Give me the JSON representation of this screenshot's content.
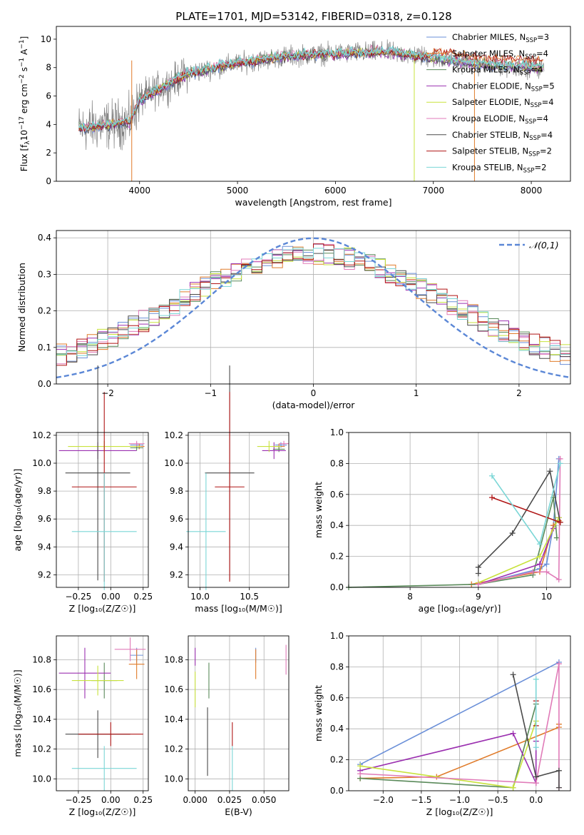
{
  "title": "PLATE=1701, MJD=53142, FIBERID=0318, z=0.128",
  "colors": {
    "chabrier_miles": "#6a8fd8",
    "salpeter_miles": "#e07b2a",
    "kroupa_miles": "#5a8a5a",
    "chabrier_elodie": "#9b30b0",
    "salpeter_elodie": "#c8e23c",
    "kroupa_elodie": "#e07bb8",
    "chabrier_stelib": "#4a4a4a",
    "salpeter_stelib": "#b01515",
    "kroupa_stelib": "#7ad6d6",
    "data": "#808080",
    "normal": "#5b87d6"
  },
  "chart_data": [
    {
      "id": "spectrum",
      "type": "line",
      "xlabel": "wavelength [Angstrom, rest frame]",
      "ylabel": "Flux [f",
      "ylabel_full": "Flux [fλ10^-17 erg cm^-2 s^-1 A^-1]",
      "xlim": [
        3150,
        8400
      ],
      "ylim": [
        0,
        10.9
      ],
      "xticks": [
        4000,
        5000,
        6000,
        7000,
        8000
      ],
      "yticks": [
        0,
        2,
        4,
        6,
        8,
        10
      ],
      "legend": [
        {
          "base": "Chabrier MILES, N",
          "sub": "SSP",
          "tail": "=3"
        },
        {
          "base": "Salpeter MILES, N",
          "sub": "SSP",
          "tail": "=4"
        },
        {
          "base": "Kroupa MILES, N",
          "sub": "SSP",
          "tail": "=4"
        },
        {
          "base": "Chabrier ELODIE, N",
          "sub": "SSP",
          "tail": "=5"
        },
        {
          "base": "Salpeter ELODIE, N",
          "sub": "SSP",
          "tail": "=4"
        },
        {
          "base": "Kroupa ELODIE, N",
          "sub": "SSP",
          "tail": "=4"
        },
        {
          "base": "Chabrier STELIB, N",
          "sub": "SSP",
          "tail": "=4"
        },
        {
          "base": "Salpeter STELIB, N",
          "sub": "SSP",
          "tail": "=2"
        },
        {
          "base": "Kroupa STELIB, N",
          "sub": "SSP",
          "tail": "=2"
        }
      ],
      "continuum": {
        "x": [
          3380,
          3600,
          3900,
          4000,
          4200,
          4500,
          5000,
          5500,
          6000,
          6500,
          7000,
          7500,
          8100
        ],
        "y": [
          3.7,
          3.9,
          4.2,
          5.7,
          6.5,
          7.6,
          8.3,
          8.8,
          9.0,
          9.1,
          8.7,
          8.2,
          8.0
        ]
      }
    },
    {
      "id": "residuals",
      "type": "step",
      "xlabel": "(data-model)/error",
      "ylabel": "Normed distribution",
      "xlim": [
        -2.5,
        2.5
      ],
      "ylim": [
        0,
        0.42
      ],
      "xticks": [
        -2,
        -1,
        0,
        1,
        2
      ],
      "yticks": [
        0.0,
        0.1,
        0.2,
        0.3,
        0.4
      ],
      "legend": "N(0,1)",
      "normal_label": "𝒩(0,1)"
    },
    {
      "id": "age_vs_Z",
      "type": "errorbar",
      "xlabel": "Z [log₁₀(Z/Z☉)]",
      "ylabel": "age  [log₁₀(age/yr)]",
      "xlim": [
        -0.42,
        0.29
      ],
      "ylim": [
        9.11,
        10.22
      ],
      "xticks": [
        -0.25,
        0.0,
        0.25
      ],
      "xticklabels": [
        "−0.25",
        "0.00",
        "0.25"
      ],
      "yticks": [
        9.2,
        9.4,
        9.6,
        9.8,
        10.0,
        10.2
      ],
      "points": [
        {
          "s": "chabrier_miles",
          "x": 0.2,
          "xe": 0.05,
          "y": 10.13,
          "ye": 0.02
        },
        {
          "s": "salpeter_miles",
          "x": 0.22,
          "xe": 0.04,
          "y": 10.12,
          "ye": 0.02
        },
        {
          "s": "kroupa_miles",
          "x": 0.2,
          "xe": 0.05,
          "y": 10.11,
          "ye": 0.02
        },
        {
          "s": "chabrier_elodie",
          "x": -0.1,
          "xe": 0.3,
          "y": 10.09,
          "ye": 0.06
        },
        {
          "s": "salpeter_elodie",
          "x": -0.05,
          "xe": 0.28,
          "y": 10.12,
          "ye": 0.04
        },
        {
          "s": "kroupa_elodie",
          "x": 0.2,
          "xe": 0.06,
          "y": 10.14,
          "ye": 0.02
        },
        {
          "s": "chabrier_stelib",
          "x": -0.1,
          "xe": 0.25,
          "y": 9.93,
          "ye": 0.77
        },
        {
          "s": "salpeter_stelib",
          "x": -0.05,
          "xe": 0.25,
          "y": 9.83,
          "ye": 0.68
        },
        {
          "s": "kroupa_stelib",
          "x": -0.05,
          "xe": 0.25,
          "y": 9.51,
          "ye": 0.42
        }
      ]
    },
    {
      "id": "age_vs_mass",
      "type": "errorbar",
      "xlabel": "mass [log₁₀(M/M☉)]",
      "ylabel": "",
      "xlim": [
        9.88,
        10.9
      ],
      "ylim": [
        9.11,
        10.22
      ],
      "xticks": [
        10.0,
        10.5
      ],
      "xticklabels": [
        "10.0",
        "10.5"
      ],
      "yticks": [
        9.2,
        9.4,
        9.6,
        9.8,
        10.0,
        10.2
      ],
      "points": [
        {
          "s": "chabrier_miles",
          "x": 10.82,
          "xe": 0.06,
          "y": 10.13,
          "ye": 0.02
        },
        {
          "s": "salpeter_miles",
          "x": 10.8,
          "xe": 0.06,
          "y": 10.12,
          "ye": 0.02
        },
        {
          "s": "kroupa_miles",
          "x": 10.8,
          "xe": 0.06,
          "y": 10.1,
          "ye": 0.02
        },
        {
          "s": "chabrier_elodie",
          "x": 10.75,
          "xe": 0.12,
          "y": 10.09,
          "ye": 0.06
        },
        {
          "s": "salpeter_elodie",
          "x": 10.7,
          "xe": 0.12,
          "y": 10.12,
          "ye": 0.04
        },
        {
          "s": "kroupa_elodie",
          "x": 10.85,
          "xe": 0.05,
          "y": 10.14,
          "ye": 0.02
        },
        {
          "s": "chabrier_stelib",
          "x": 10.3,
          "xe": 0.25,
          "y": 9.93,
          "ye": 0.77
        },
        {
          "s": "salpeter_stelib",
          "x": 10.3,
          "xe": 0.15,
          "y": 9.83,
          "ye": 0.68
        },
        {
          "s": "kroupa_stelib",
          "x": 10.06,
          "xe": 0.2,
          "y": 9.51,
          "ye": 0.42
        }
      ]
    },
    {
      "id": "weight_vs_age",
      "type": "line",
      "xlabel": "age  [log₁₀(age/yr)]",
      "ylabel": "mass weight",
      "xlim": [
        7.1,
        10.35
      ],
      "ylim": [
        0,
        1.0
      ],
      "xticks": [
        8,
        9,
        10
      ],
      "yticks": [
        0.0,
        0.2,
        0.4,
        0.6,
        0.8,
        1.0
      ],
      "series": [
        {
          "s": "chabrier_miles",
          "x": [
            9.0,
            9.9,
            10.0,
            10.1,
            10.18
          ],
          "y": [
            0.02,
            0.12,
            0.15,
            0.4,
            0.83
          ]
        },
        {
          "s": "salpeter_miles",
          "x": [
            8.9,
            9.9,
            10.1,
            10.18
          ],
          "y": [
            0.02,
            0.1,
            0.4,
            0.43
          ]
        },
        {
          "s": "kroupa_miles",
          "x": [
            7.1,
            9.0,
            9.8,
            10.1,
            10.15
          ],
          "y": [
            0.0,
            0.02,
            0.08,
            0.58,
            0.32
          ]
        },
        {
          "s": "chabrier_elodie",
          "x": [
            9.0,
            9.9,
            10.1,
            10.18
          ],
          "y": [
            0.02,
            0.15,
            0.38,
            0.45
          ]
        },
        {
          "s": "salpeter_elodie",
          "x": [
            9.0,
            9.9,
            10.18
          ],
          "y": [
            0.03,
            0.2,
            0.45
          ]
        },
        {
          "s": "kroupa_elodie",
          "x": [
            9.0,
            9.8,
            10.0,
            10.18,
            10.2
          ],
          "y": [
            0.02,
            0.1,
            0.1,
            0.05,
            0.83
          ]
        },
        {
          "s": "chabrier_stelib",
          "x": [
            9.0,
            9.0,
            9.5,
            10.05,
            10.2
          ],
          "y": [
            0.09,
            0.13,
            0.35,
            0.75,
            0.42
          ]
        },
        {
          "s": "salpeter_stelib",
          "x": [
            9.2,
            10.2
          ],
          "y": [
            0.58,
            0.42
          ]
        },
        {
          "s": "kroupa_stelib",
          "x": [
            9.2,
            9.9,
            10.2
          ],
          "y": [
            0.72,
            0.28,
            0.8
          ]
        }
      ]
    },
    {
      "id": "mass_vs_Z",
      "type": "errorbar",
      "xlabel": "Z [log₁₀(Z/Z☉)]",
      "ylabel": "mass [log₁₀(M/M☉)]",
      "xlim": [
        -0.42,
        0.29
      ],
      "ylim": [
        9.92,
        10.96
      ],
      "xticks": [
        -0.25,
        0.0,
        0.25
      ],
      "xticklabels": [
        "−0.25",
        "0.00",
        "0.25"
      ],
      "yticks": [
        10.0,
        10.2,
        10.4,
        10.6,
        10.8
      ],
      "points": [
        {
          "s": "chabrier_miles",
          "x": 0.2,
          "xe": 0.05,
          "y": 10.83,
          "ye": 0.05
        },
        {
          "s": "salpeter_miles",
          "x": 0.2,
          "xe": 0.06,
          "y": 10.77,
          "ye": 0.1
        },
        {
          "s": "kroupa_miles",
          "x": -0.05,
          "xe": 0.1,
          "y": 10.66,
          "ye": 0.12
        },
        {
          "s": "chabrier_elodie",
          "x": -0.2,
          "xe": 0.2,
          "y": 10.71,
          "ye": 0.17
        },
        {
          "s": "salpeter_elodie",
          "x": -0.1,
          "xe": 0.2,
          "y": 10.66,
          "ye": 0.1
        },
        {
          "s": "kroupa_elodie",
          "x": 0.15,
          "xe": 0.12,
          "y": 10.87,
          "ye": 0.08
        },
        {
          "s": "chabrier_stelib",
          "x": -0.1,
          "xe": 0.25,
          "y": 10.3,
          "ye": 0.16
        },
        {
          "s": "salpeter_stelib",
          "x": 0.0,
          "xe": 0.25,
          "y": 10.3,
          "ye": 0.08
        },
        {
          "s": "kroupa_stelib",
          "x": -0.05,
          "xe": 0.25,
          "y": 10.07,
          "ye": 0.15
        }
      ]
    },
    {
      "id": "mass_vs_ebv",
      "type": "errorbar",
      "xlabel": "E(B-V)",
      "ylabel": "",
      "xlim": [
        -0.005,
        0.068
      ],
      "ylim": [
        9.92,
        10.96
      ],
      "xticks": [
        0.0,
        0.025,
        0.05
      ],
      "xticklabels": [
        "0.000",
        "0.025",
        "0.050"
      ],
      "yticks": [
        10.0,
        10.2,
        10.4,
        10.6,
        10.8
      ],
      "points": [
        {
          "s": "chabrier_miles",
          "x": 0.044,
          "xe": 0.0,
          "y": 10.83,
          "ye": 0.05
        },
        {
          "s": "salpeter_miles",
          "x": 0.044,
          "xe": 0.0,
          "y": 10.77,
          "ye": 0.1
        },
        {
          "s": "kroupa_miles",
          "x": 0.01,
          "xe": 0.0,
          "y": 10.66,
          "ye": 0.12
        },
        {
          "s": "chabrier_elodie",
          "x": 0.0,
          "xe": 0.0,
          "y": 10.82,
          "ye": 0.06
        },
        {
          "s": "salpeter_elodie",
          "x": 0.0,
          "xe": 0.0,
          "y": 10.6,
          "ye": 0.12
        },
        {
          "s": "kroupa_elodie",
          "x": 0.066,
          "xe": 0.0,
          "y": 10.8,
          "ye": 0.1
        },
        {
          "s": "chabrier_stelib",
          "x": 0.009,
          "xe": 0.0,
          "y": 10.25,
          "ye": 0.23
        },
        {
          "s": "salpeter_stelib",
          "x": 0.027,
          "xe": 0.0,
          "y": 10.3,
          "ye": 0.08
        },
        {
          "s": "kroupa_stelib",
          "x": 0.027,
          "xe": 0.0,
          "y": 10.07,
          "ye": 0.15
        }
      ]
    },
    {
      "id": "weight_vs_Z",
      "type": "line",
      "xlabel": "Z [log₁₀(Z/Z☉)]",
      "ylabel": "mass weight",
      "xlim": [
        -2.45,
        0.45
      ],
      "ylim": [
        0,
        1.0
      ],
      "xticks": [
        -2.0,
        -1.5,
        -1.0,
        -0.5,
        0.0
      ],
      "xticklabels": [
        "−2.0",
        "−1.5",
        "−1.0",
        "−0.5",
        "0.0"
      ],
      "yticks": [
        0.0,
        0.2,
        0.4,
        0.6,
        0.8,
        1.0
      ],
      "series": [
        {
          "s": "chabrier_miles",
          "x": [
            -2.3,
            0.3
          ],
          "y": [
            0.17,
            0.83
          ]
        },
        {
          "s": "salpeter_miles",
          "x": [
            -2.3,
            -1.3,
            0.3,
            0.3
          ],
          "y": [
            0.08,
            0.09,
            0.41,
            0.43
          ]
        },
        {
          "s": "kroupa_miles",
          "x": [
            -2.3,
            -0.3,
            0.0
          ],
          "y": [
            0.08,
            0.02,
            0.56
          ]
        },
        {
          "s": "chabrier_elodie",
          "x": [
            -2.3,
            -0.3,
            0.0,
            0.0
          ],
          "y": [
            0.13,
            0.37,
            0.05,
            0.32
          ]
        },
        {
          "s": "salpeter_elodie",
          "x": [
            -2.3,
            -0.3,
            0.0
          ],
          "y": [
            0.16,
            0.02,
            0.45
          ]
        },
        {
          "s": "kroupa_elodie",
          "x": [
            -2.3,
            0.0,
            0.3,
            0.3
          ],
          "y": [
            0.11,
            0.05,
            0.82,
            0.02
          ]
        },
        {
          "s": "chabrier_stelib",
          "x": [
            -0.3,
            0.0,
            0.3,
            0.3
          ],
          "y": [
            0.75,
            0.09,
            0.13,
            0.02
          ]
        },
        {
          "s": "salpeter_stelib",
          "x": [
            0.0,
            0.0
          ],
          "y": [
            0.58,
            0.42
          ]
        },
        {
          "s": "kroupa_stelib",
          "x": [
            0.0,
            0.0
          ],
          "y": [
            0.72,
            0.28
          ]
        }
      ]
    }
  ]
}
